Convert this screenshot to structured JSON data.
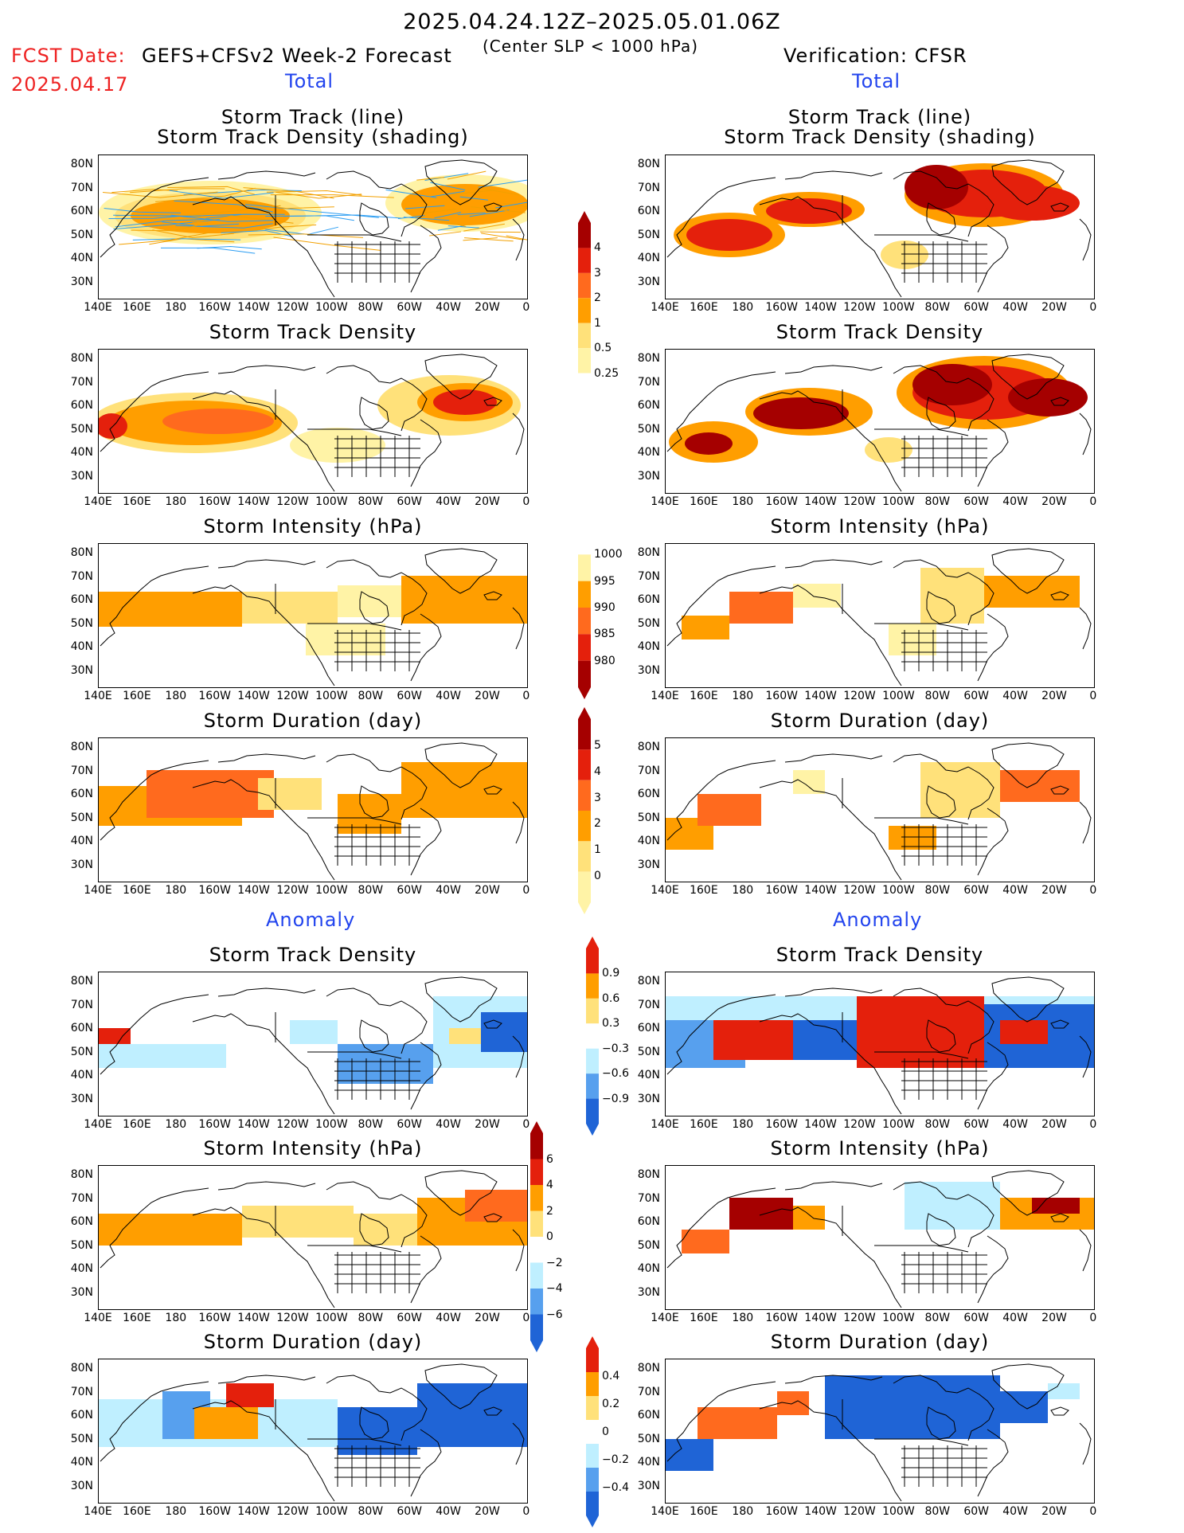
{
  "header": {
    "title": "2025.04.24.12Z–2025.05.01.06Z",
    "fcst_label": "FCST Date:",
    "fcst_date": "2025.04.17",
    "model": "GEFS+CFSv2 Week-2 Forecast",
    "center_note": "(Center SLP < 1000 hPa)",
    "verification": "Verification: CFSR"
  },
  "sections": {
    "total_left": "Total",
    "total_right": "Total",
    "anomaly_left": "Anomaly",
    "anomaly_right": "Anomaly"
  },
  "panel_titles": {
    "track_line": "Storm Track (line)",
    "track_density_shading": "Storm Track Density (shading)",
    "track_density": "Storm Track Density",
    "intensity": "Storm Intensity (hPa)",
    "duration": "Storm Duration (day)"
  },
  "axes": {
    "lat_labels": [
      "80N",
      "70N",
      "60N",
      "50N",
      "40N",
      "30N"
    ],
    "lon_labels": [
      "140E",
      "160E",
      "180",
      "160W",
      "140W",
      "120W",
      "100W",
      "80W",
      "60W",
      "40W",
      "20W",
      "0"
    ]
  },
  "colorbars": {
    "density_total": {
      "labels": [
        "4",
        "3",
        "2",
        "1",
        "0.5",
        "0.25"
      ]
    },
    "intensity_total": {
      "labels": [
        "1000",
        "995",
        "990",
        "985",
        "980"
      ]
    },
    "duration_total": {
      "labels": [
        "5",
        "4",
        "3",
        "2",
        "1",
        "0"
      ]
    },
    "density_anom": {
      "labels": [
        "0.9",
        "0.6",
        "0.3",
        "−0.3",
        "−0.6",
        "−0.9"
      ]
    },
    "intensity_anom": {
      "labels": [
        "6",
        "4",
        "2",
        "0",
        "−2",
        "−4",
        "−6"
      ]
    },
    "duration_anom": {
      "labels": [
        "0.4",
        "0.2",
        "0",
        "−0.2",
        "−0.4"
      ]
    }
  },
  "colors": {
    "pale_yellow": "#fff3a6",
    "light_yellow": "#ffe17a",
    "orange": "#ff9e00",
    "orange_red": "#ff6a1e",
    "red": "#e4200c",
    "dark_red": "#a50000",
    "light_blue": "#bfefff",
    "mid_blue": "#57a0ee",
    "blue": "#1f64d6",
    "track_line_orange": "#f2a000",
    "track_line_blue": "#2b9df2"
  }
}
